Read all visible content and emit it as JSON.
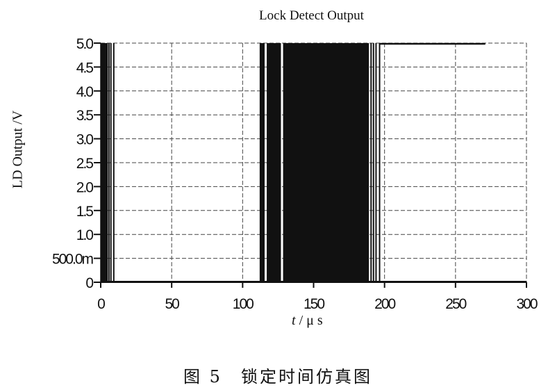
{
  "chart_data": {
    "type": "line",
    "title": "Lock Detect Output",
    "ylabel": "LD Output /V",
    "xlabel_var": "t",
    "xlabel_unit": "/ μ s",
    "xlim": [
      0,
      300
    ],
    "ylim": [
      0,
      5.0
    ],
    "grid": true,
    "x_ticks": [
      0,
      50,
      100,
      150,
      200,
      250,
      300
    ],
    "x_tick_labels": [
      "0",
      "50",
      "100",
      "150",
      "200",
      "250",
      "300"
    ],
    "y_ticks": [
      0,
      0.5,
      1.0,
      1.5,
      2.0,
      2.5,
      3.0,
      3.5,
      4.0,
      4.5,
      5.0
    ],
    "y_tick_labels": [
      "0",
      "500.0m",
      "1.0",
      "1.5",
      "2.0",
      "2.5",
      "3.0",
      "3.5",
      "4.0",
      "4.5",
      "5.0"
    ],
    "signal": {
      "low": 0,
      "high": 5.0,
      "dense_pulse_bands": [
        [
          0,
          5
        ],
        [
          112,
          115.5
        ],
        [
          117,
          127
        ],
        [
          128.5,
          189
        ]
      ],
      "single_pulses": [
        5.8,
        7.2,
        9.2,
        190.5,
        192.2,
        194,
        196.5
      ],
      "high_segments": [
        [
          196.5,
          271
        ]
      ]
    },
    "color": "#111111"
  },
  "caption": "图 5　锁定时间仿真图"
}
